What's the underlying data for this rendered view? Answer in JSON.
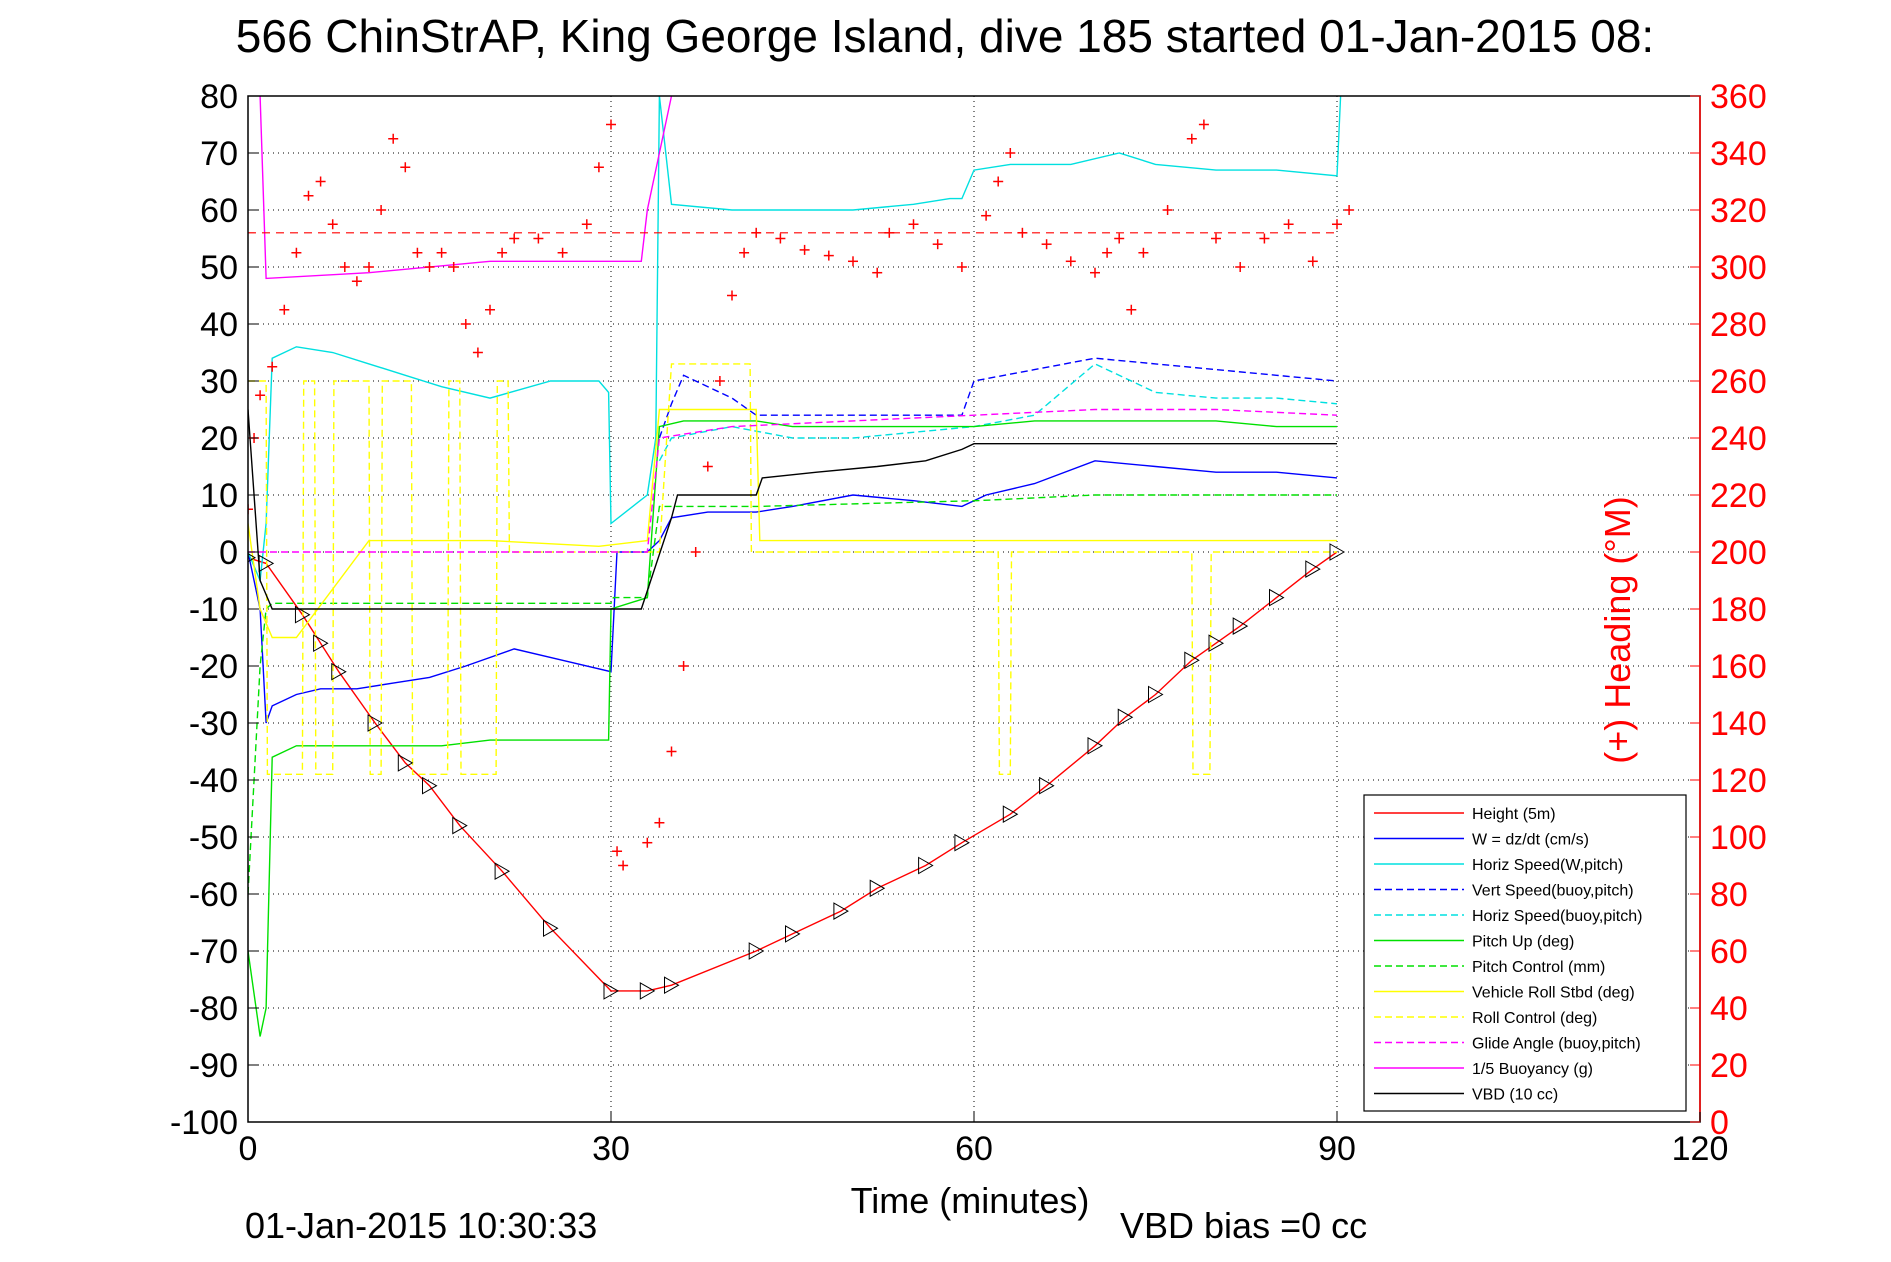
{
  "chart_data": {
    "type": "line",
    "title": "566 ChinStrAP, King George Island, dive 185 started 01-Jan-2015 08:",
    "xlabel": "Time (minutes)",
    "ylabel_right": "(+) Heading (°M)",
    "footer_left": "01-Jan-2015 10:30:33",
    "footer_right": "VBD bias =0 cc",
    "xlim": [
      0,
      120
    ],
    "ylim": [
      -100,
      80
    ],
    "ylim_right": [
      0,
      360
    ],
    "x_ticks": [
      0,
      30,
      60,
      90,
      120
    ],
    "y_ticks": [
      80,
      70,
      60,
      50,
      40,
      30,
      20,
      10,
      0,
      -10,
      -20,
      -30,
      -40,
      -50,
      -60,
      -70,
      -80,
      -90,
      -100
    ],
    "y_ticks_right": [
      360,
      340,
      320,
      300,
      280,
      260,
      240,
      220,
      200,
      180,
      160,
      140,
      120,
      100,
      80,
      60,
      40,
      20,
      0
    ],
    "grid": true,
    "legend_position": "bottom-right",
    "heading_reference": 312,
    "series": [
      {
        "name": "Height (5m)",
        "color": "#ff0000",
        "style": "solid",
        "x": [
          0,
          1.5,
          4.5,
          6,
          7.5,
          10.5,
          13,
          15,
          17.5,
          21,
          25,
          30,
          33,
          35,
          42,
          45,
          49,
          52,
          56,
          59,
          63,
          66,
          70,
          72.5,
          75,
          78,
          80,
          82,
          85,
          88,
          90
        ],
        "y": [
          -1,
          -2,
          -11,
          -16,
          -21,
          -30,
          -37,
          -41,
          -48,
          -56,
          -66,
          -77,
          -77,
          -76,
          -70,
          -67,
          -63,
          -59,
          -55,
          -51,
          -46,
          -41,
          -34,
          -29,
          -25,
          -19,
          -16,
          -13,
          -8,
          -3,
          0
        ]
      },
      {
        "name": "W = dz/dt (cm/s)",
        "color": "#0000ff",
        "style": "solid",
        "x": [
          0,
          1,
          1.5,
          2,
          4,
          6,
          9,
          12,
          15,
          18,
          22,
          26,
          30,
          30.5,
          33,
          34,
          35,
          38,
          42,
          45,
          50,
          55,
          59,
          61,
          65,
          70,
          75,
          80,
          85,
          90
        ],
        "y": [
          0,
          -10,
          -30,
          -27,
          -25,
          -24,
          -24,
          -23,
          -22,
          -20,
          -17,
          -19,
          -21,
          0,
          0,
          2,
          6,
          7,
          7,
          8,
          10,
          9,
          8,
          10,
          12,
          16,
          15,
          14,
          14,
          13
        ]
      },
      {
        "name": "Horiz Speed(W,pitch)",
        "color": "#00e0e0",
        "style": "solid",
        "x": [
          0,
          1,
          1.5,
          2,
          4,
          7,
          10,
          13,
          16,
          20,
          25,
          29,
          29.8,
          30,
          33,
          33.7,
          34,
          35,
          40,
          45,
          50,
          55,
          58,
          59,
          60,
          63,
          68,
          72,
          75,
          80,
          85,
          90,
          90.3
        ],
        "y": [
          0,
          -5,
          5,
          34,
          36,
          35,
          33,
          31,
          29,
          27,
          30,
          30,
          28,
          5,
          10,
          20,
          80,
          61,
          60,
          60,
          60,
          61,
          62,
          62,
          67,
          68,
          68,
          70,
          68,
          67,
          67,
          66,
          80
        ]
      },
      {
        "name": "Vert Speed(buoy,pitch)",
        "color": "#0000ff",
        "style": "dashed",
        "x": [
          34,
          35,
          36,
          40,
          42,
          50,
          58,
          59,
          60,
          65,
          70,
          75,
          80,
          85,
          90
        ],
        "y": [
          20,
          26,
          31,
          27,
          24,
          24,
          24,
          24,
          30,
          32,
          34,
          33,
          32,
          31,
          30
        ]
      },
      {
        "name": "Horiz Speed(buoy,pitch)",
        "color": "#00e0e0",
        "style": "dashed",
        "x": [
          34,
          35,
          40,
          45,
          50,
          55,
          60,
          65,
          70,
          75,
          80,
          85,
          90
        ],
        "y": [
          16,
          20,
          22,
          20,
          20,
          21,
          22,
          24,
          33,
          28,
          27,
          27,
          26
        ]
      },
      {
        "name": "Pitch Up (deg)",
        "color": "#00e000",
        "style": "solid",
        "x": [
          0,
          1,
          1.5,
          2,
          4,
          8,
          12,
          16,
          20,
          25,
          29.8,
          30,
          33,
          34,
          36,
          42,
          45,
          50,
          55,
          60,
          65,
          70,
          75,
          80,
          85,
          90
        ],
        "y": [
          -70,
          -85,
          -80,
          -36,
          -34,
          -34,
          -34,
          -34,
          -33,
          -33,
          -33,
          -10,
          -8,
          22,
          23,
          23,
          22,
          22,
          22,
          22,
          23,
          23,
          23,
          23,
          22,
          22
        ]
      },
      {
        "name": "Pitch Control (mm)",
        "color": "#00e000",
        "style": "dashed",
        "x": [
          0,
          1,
          1.5,
          2,
          30,
          30.2,
          33,
          34,
          42,
          42.2,
          60,
          60.2,
          70,
          70.2,
          90
        ],
        "y": [
          -60,
          -20,
          -10,
          -9,
          -9,
          -8,
          -8,
          8,
          8,
          8,
          9,
          9,
          10,
          10,
          10
        ]
      },
      {
        "name": "Vehicle Roll Stbd (deg)",
        "color": "#ffff00",
        "style": "solid",
        "x": [
          0,
          1,
          2,
          4,
          10,
          20,
          29,
          33,
          34,
          35,
          42,
          42.3,
          50,
          60,
          70,
          80,
          90
        ],
        "y": [
          5,
          -10,
          -15,
          -15,
          2,
          2,
          1,
          2,
          25,
          25,
          25,
          2,
          2,
          2,
          2,
          2,
          2
        ]
      },
      {
        "name": "Roll Control (deg)",
        "color": "#ffff00",
        "style": "dashed",
        "x": [
          0,
          1.5,
          1.6,
          4.5,
          4.6,
          5.5,
          5.6,
          7,
          7.1,
          10,
          10.1,
          11,
          11.1,
          13.5,
          13.6,
          16.5,
          16.6,
          17.5,
          17.6,
          20.5,
          20.6,
          21.5,
          21.6,
          30,
          34,
          35,
          41.5,
          41.6,
          50,
          62,
          62.1,
          63,
          63.1,
          78,
          78.1,
          79.5,
          79.6,
          90
        ],
        "y": [
          30,
          30,
          -39,
          -39,
          30,
          30,
          -39,
          -39,
          30,
          30,
          -39,
          -39,
          30,
          30,
          -39,
          -39,
          30,
          30,
          -39,
          -39,
          30,
          30,
          0,
          0,
          0,
          33,
          33,
          0,
          0,
          0,
          -39,
          -39,
          0,
          0,
          -39,
          -39,
          0,
          0
        ]
      },
      {
        "name": "Glide Angle (buoy,pitch)",
        "color": "#ff00ff",
        "style": "dashed",
        "x": [
          0,
          30,
          33,
          34,
          40,
          50,
          60,
          70,
          80,
          90
        ],
        "y": [
          0,
          0,
          0,
          20,
          22,
          23,
          24,
          25,
          25,
          24
        ]
      },
      {
        "name": "1/5 Buoyancy (g)",
        "color": "#ff00ff",
        "style": "solid",
        "x": [
          1,
          1.5,
          10,
          20,
          30,
          32.5,
          33,
          34,
          35
        ],
        "y": [
          80,
          48,
          49,
          51,
          51,
          51,
          60,
          70,
          80
        ]
      },
      {
        "name": "VBD (10 cc)",
        "color": "#000000",
        "style": "solid",
        "x": [
          0,
          1,
          2,
          30,
          32.5,
          35,
          35.5,
          42,
          42.5,
          47,
          52,
          56,
          59,
          60,
          90
        ],
        "y": [
          25,
          -5,
          -10,
          -10,
          -10,
          6,
          10,
          10,
          13,
          14,
          15,
          16,
          18,
          19,
          19
        ]
      }
    ],
    "heading_series": {
      "name": "Heading",
      "color": "#ff0000",
      "marker": "+",
      "x": [
        0,
        0.5,
        1,
        2,
        3,
        4,
        5,
        6,
        7,
        8,
        9,
        10,
        11,
        12,
        13,
        14,
        15,
        16,
        17,
        18,
        19,
        20,
        21,
        22,
        24,
        26,
        28,
        29,
        30,
        30.5,
        31,
        33,
        34,
        35,
        36,
        37,
        38,
        39,
        40,
        41,
        42,
        44,
        46,
        48,
        50,
        52,
        53,
        55,
        57,
        59,
        61,
        62,
        63,
        64,
        66,
        68,
        70,
        71,
        72,
        73,
        74,
        76,
        78,
        79,
        80,
        82,
        84,
        86,
        88,
        90,
        91
      ],
      "y": [
        215,
        240,
        255,
        265,
        285,
        305,
        325,
        330,
        315,
        300,
        295,
        300,
        320,
        345,
        335,
        305,
        300,
        305,
        300,
        280,
        270,
        285,
        305,
        310,
        310,
        305,
        315,
        335,
        350,
        95,
        90,
        98,
        105,
        130,
        160,
        200,
        230,
        260,
        290,
        305,
        312,
        310,
        306,
        304,
        302,
        298,
        312,
        315,
        308,
        300,
        318,
        330,
        340,
        312,
        308,
        302,
        298,
        305,
        310,
        285,
        305,
        320,
        345,
        350,
        310,
        300,
        310,
        315,
        302,
        315,
        320
      ]
    }
  }
}
